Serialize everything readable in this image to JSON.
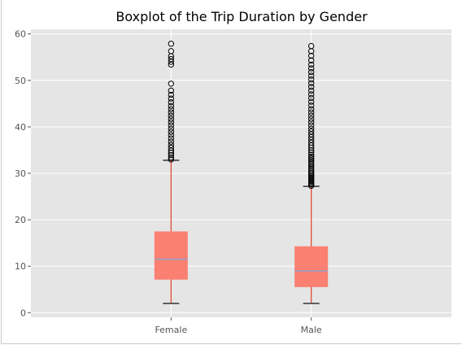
{
  "chart_data": {
    "type": "box",
    "title": "Boxplot of the Trip Duration by Gender",
    "xlabel": "",
    "ylabel": "",
    "categories": [
      "Female",
      "Male"
    ],
    "ylim": [
      -1,
      61
    ],
    "yticks": [
      0,
      10,
      20,
      30,
      40,
      50,
      60
    ],
    "grid": true,
    "colors": {
      "plot_background": "#e5e5e5",
      "grid": "#ffffff",
      "box_fill": "#fa8072",
      "whisker": "#e24a33",
      "median": "#8ea0c8",
      "cap": "#333333",
      "outlier": "#000000"
    },
    "boxes": [
      {
        "name": "Female",
        "whisker_low": 2.0,
        "q1": 7.2,
        "median": 11.5,
        "q3": 17.4,
        "whisker_high": 32.8,
        "outliers": [
          33.0,
          33.4,
          33.9,
          34.4,
          34.9,
          35.5,
          36.1,
          36.8,
          37.5,
          38.2,
          38.9,
          39.6,
          40.3,
          41.0,
          41.7,
          42.4,
          43.1,
          43.8,
          44.5,
          45.3,
          46.1,
          46.9,
          47.8,
          49.3,
          53.4,
          54.0,
          54.6,
          55.2,
          56.3,
          57.9
        ]
      },
      {
        "name": "Male",
        "whisker_low": 2.0,
        "q1": 5.6,
        "median": 9.0,
        "q3": 14.2,
        "whisker_high": 27.2,
        "outliers": [
          27.3,
          27.6,
          27.9,
          28.2,
          28.5,
          28.8,
          29.1,
          29.4,
          29.7,
          30.0,
          30.4,
          30.8,
          31.2,
          31.6,
          32.0,
          32.4,
          32.8,
          33.2,
          33.6,
          34.0,
          34.5,
          35.0,
          35.5,
          36.0,
          36.6,
          37.2,
          37.8,
          38.4,
          39.0,
          39.6,
          40.3,
          41.0,
          41.7,
          42.4,
          43.1,
          43.8,
          44.6,
          45.4,
          46.2,
          47.0,
          47.8,
          48.6,
          49.4,
          50.2,
          51.0,
          51.8,
          52.6,
          53.4,
          54.3,
          55.3,
          56.3,
          57.4
        ]
      }
    ]
  }
}
